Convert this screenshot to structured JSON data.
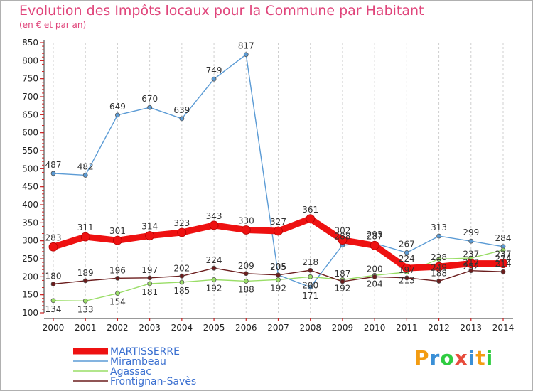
{
  "header": {
    "title": "Evolution des Impôts locaux pour la Commune par Habitant",
    "subtitle": "(en € et par an)"
  },
  "brand": {
    "letters": [
      "P",
      "r",
      "o",
      "x",
      "i",
      "t",
      "i"
    ],
    "colors": [
      "#f39c12",
      "#3a8fd6",
      "#2ecc40",
      "#e74c3c",
      "#3a8fd6",
      "#f39c12",
      "#2ecc40"
    ]
  },
  "chart_data": {
    "type": "line",
    "title": "Evolution des Impôts locaux pour la Commune par Habitant",
    "subtitle": "(en € et par an)",
    "x": [
      "2000",
      "2001",
      "2002",
      "2003",
      "2004",
      "2005",
      "2006",
      "2007",
      "2008",
      "2009",
      "2010",
      "2011",
      "2012",
      "2013",
      "2014"
    ],
    "ylim": [
      100,
      850
    ],
    "yticks": [
      100,
      150,
      200,
      250,
      300,
      350,
      400,
      450,
      500,
      550,
      600,
      650,
      700,
      750,
      800,
      850
    ],
    "grid": "vertical",
    "legend": "bottom-left",
    "series": [
      {
        "name": "MARTISSERRE",
        "color": "#ee1111",
        "values": [
          283,
          311,
          301,
          314,
          323,
          343,
          330,
          327,
          361,
          302,
          287,
          224,
          228,
          237,
          237
        ],
        "labels": [
          "283",
          "311",
          "301",
          "314",
          "323",
          "343",
          "330",
          "327",
          "361",
          "302",
          "287",
          "224",
          "228",
          "237",
          "237"
        ]
      },
      {
        "name": "Mirambeau",
        "color": "#5b9bd5",
        "values": [
          487,
          482,
          649,
          670,
          639,
          749,
          817,
          205,
          171,
          288,
          293,
          267,
          313,
          299,
          284
        ],
        "labels": [
          "487",
          "482",
          "649",
          "670",
          "639",
          "749",
          "817",
          "205",
          "171",
          "288",
          "293",
          "267",
          "313",
          "299",
          "284"
        ]
      },
      {
        "name": "Agassac",
        "color": "#99dd66",
        "values": [
          134,
          133,
          154,
          181,
          185,
          192,
          188,
          192,
          200,
          192,
          204,
          213,
          249,
          252,
          274
        ],
        "labels": [
          "134",
          "133",
          "154",
          "181",
          "185",
          "192",
          "188",
          "192",
          "200",
          "192",
          "204",
          "213",
          "249",
          "252",
          "274"
        ]
      },
      {
        "name": "Frontignan-Savès",
        "color": "#6b1d1d",
        "values": [
          180,
          189,
          196,
          197,
          202,
          224,
          209,
          205,
          218,
          187,
          200,
          197,
          188,
          217,
          214
        ],
        "labels": [
          "180",
          "189",
          "196",
          "197",
          "202",
          "224",
          "209",
          "205",
          "218",
          "187",
          "200",
          "197",
          "188",
          "217",
          "214"
        ]
      }
    ]
  }
}
